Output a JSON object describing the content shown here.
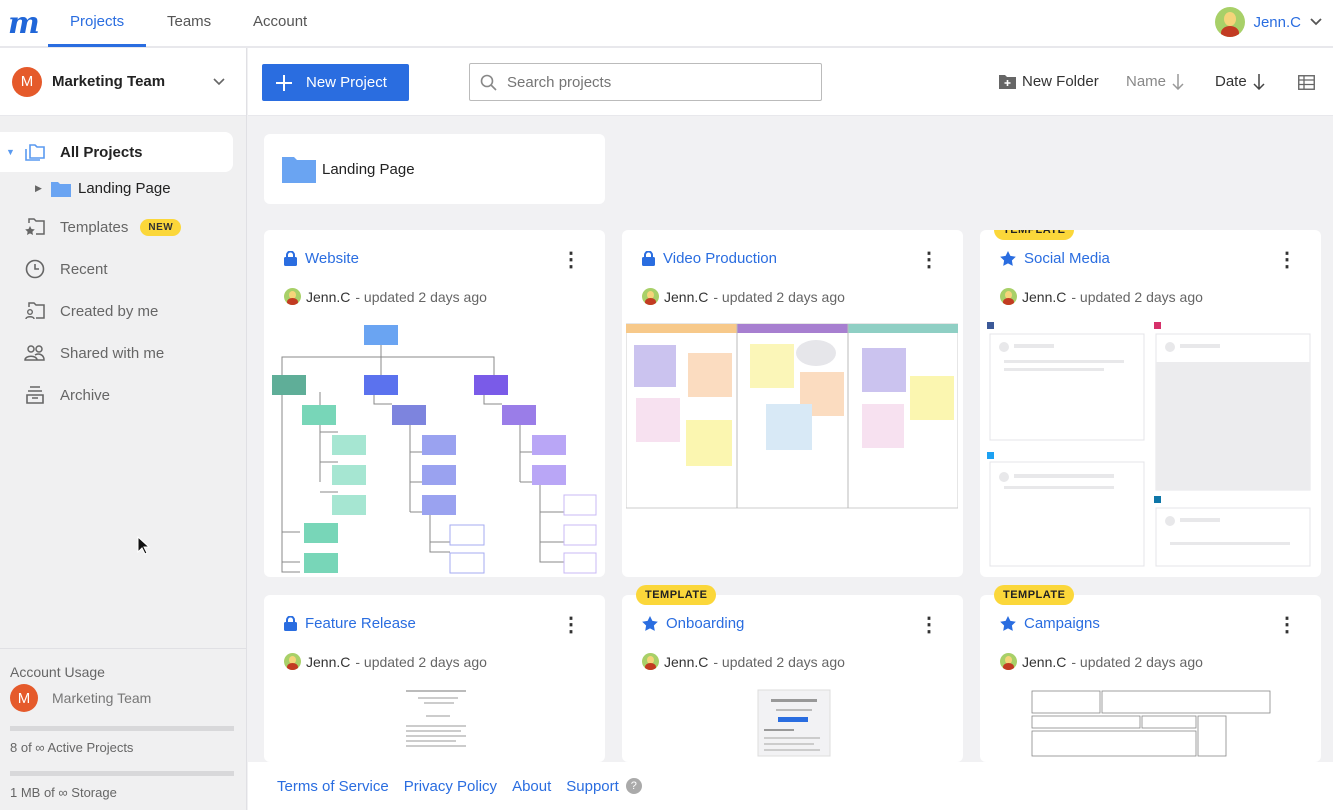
{
  "app": {
    "logo": "m"
  },
  "topnav": {
    "tabs": [
      {
        "label": "Projects",
        "active": true
      },
      {
        "label": "Teams"
      },
      {
        "label": "Account"
      }
    ],
    "user": "Jenn.C"
  },
  "sidebar": {
    "team": {
      "initial": "M",
      "name": "Marketing Team"
    },
    "items": [
      {
        "label": "All Projects",
        "icon": "folders-icon",
        "active": true
      },
      {
        "label": "Landing Page",
        "icon": "folder-icon"
      },
      {
        "label": "Templates",
        "icon": "template-icon",
        "badge": "NEW"
      },
      {
        "label": "Recent",
        "icon": "clock-icon"
      },
      {
        "label": "Created by me",
        "icon": "user-folder-icon"
      },
      {
        "label": "Shared with me",
        "icon": "users-icon"
      },
      {
        "label": "Archive",
        "icon": "archive-icon"
      }
    ],
    "usage": {
      "title": "Account Usage",
      "initial": "M",
      "team": "Marketing Team",
      "projects": "8 of ∞ Active Projects",
      "storage": "1 MB of ∞ Storage"
    }
  },
  "toolbar": {
    "new_project": "New Project",
    "search_placeholder": "Search projects",
    "new_folder": "New Folder",
    "sort_name": "Name",
    "sort_date": "Date"
  },
  "folders": [
    {
      "name": "Landing Page"
    }
  ],
  "projects": [
    {
      "title": "Website",
      "icon": "lock-icon",
      "author": "Jenn.C",
      "updated": "- updated 2 days ago"
    },
    {
      "title": "Video Production",
      "icon": "lock-icon",
      "author": "Jenn.C",
      "updated": "- updated 2 days ago"
    },
    {
      "title": "Social Media",
      "icon": "star-icon",
      "template": "TEMPLATE",
      "author": "Jenn.C",
      "updated": "- updated 2 days ago"
    },
    {
      "title": "Feature Release",
      "icon": "lock-icon",
      "author": "Jenn.C",
      "updated": "- updated 2 days ago"
    },
    {
      "title": "Onboarding",
      "icon": "star-icon",
      "template": "TEMPLATE",
      "author": "Jenn.C",
      "updated": "- updated 2 days ago"
    },
    {
      "title": "Campaigns",
      "icon": "star-icon",
      "template": "TEMPLATE",
      "author": "Jenn.C",
      "updated": "- updated 2 days ago"
    }
  ],
  "footer": {
    "links": [
      "Terms of Service",
      "Privacy Policy",
      "About",
      "Support"
    ],
    "help": "?"
  },
  "colors": {
    "accent": "#2a6de0",
    "badge": "#fbd73a",
    "team": "#e55a2b"
  }
}
